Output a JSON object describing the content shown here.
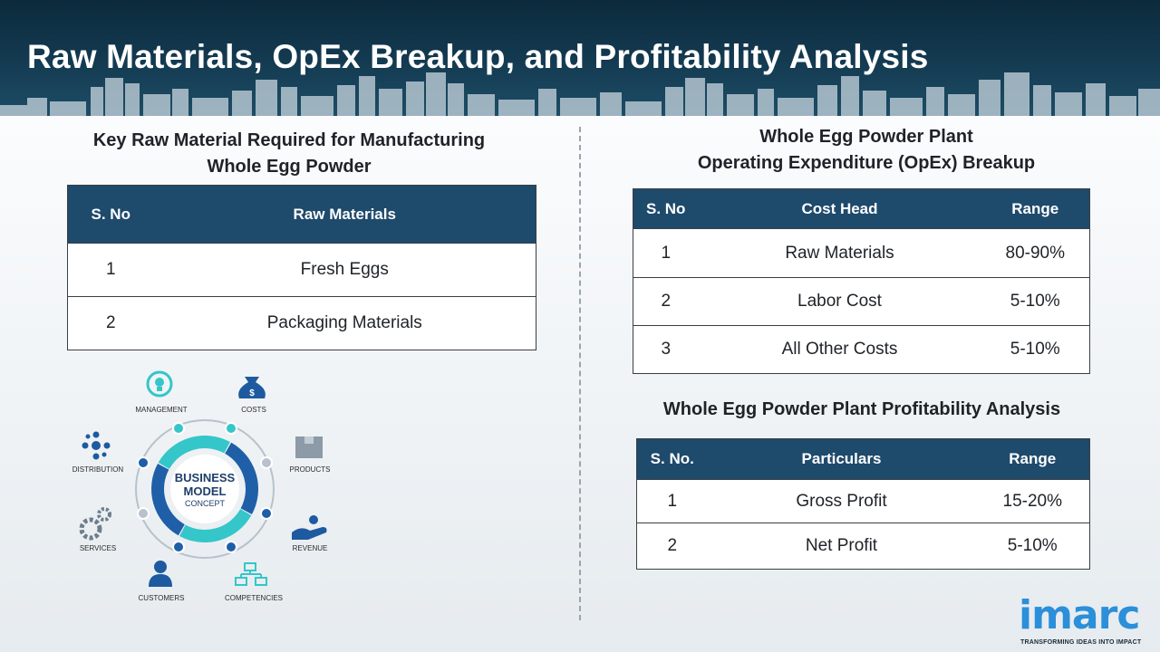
{
  "page_title": "Raw Materials, OpEx Breakup, and Profitability Analysis",
  "raw_materials": {
    "title_line1": "Key Raw Material Required for Manufacturing",
    "title_line2": "Whole Egg Powder",
    "headers": [
      "S. No",
      "Raw Materials"
    ],
    "rows": [
      {
        "sno": "1",
        "name": "Fresh Eggs"
      },
      {
        "sno": "2",
        "name": "Packaging Materials"
      }
    ]
  },
  "opex": {
    "title_line1": "Whole Egg Powder Plant",
    "title_line2": "Operating Expenditure (OpEx) Breakup",
    "headers": [
      "S. No",
      "Cost Head",
      "Range"
    ],
    "rows": [
      {
        "sno": "1",
        "head": "Raw Materials",
        "range": "80-90%"
      },
      {
        "sno": "2",
        "head": "Labor Cost",
        "range": "5-10%"
      },
      {
        "sno": "3",
        "head": "All Other Costs",
        "range": "5-10%"
      }
    ]
  },
  "profitability": {
    "title": "Whole Egg Powder Plant Profitability Analysis",
    "headers": [
      "S. No.",
      "Particulars",
      "Range"
    ],
    "rows": [
      {
        "sno": "1",
        "particular": "Gross Profit",
        "range": "15-20%"
      },
      {
        "sno": "2",
        "particular": "Net Profit",
        "range": "5-10%"
      }
    ]
  },
  "business_model": {
    "center_line1": "BUSINESS",
    "center_line2": "MODEL",
    "center_line3": "CONCEPT",
    "labels": {
      "management": "MANAGEMENT",
      "costs": "COSTS",
      "products": "PRODUCTS",
      "revenue": "REVENUE",
      "competencies": "COMPETENCIES",
      "customers": "CUSTOMERS",
      "services": "SERVICES",
      "distribution": "DISTRIBUTION"
    },
    "icons": {
      "management": "lightbulb-cycle-icon",
      "costs": "money-bag-icon",
      "products": "boxes-icon",
      "revenue": "hand-coin-icon",
      "competencies": "org-chart-icon",
      "customers": "person-icon",
      "services": "gears-icon",
      "distribution": "network-icon"
    },
    "colors": {
      "teal": "#34c6c9",
      "blue": "#1f5fa8",
      "dark": "#1e3f6a"
    }
  },
  "logo": {
    "name": "imarc",
    "tagline": "TRANSFORMING IDEAS INTO IMPACT",
    "color": "#2b8fd9"
  }
}
